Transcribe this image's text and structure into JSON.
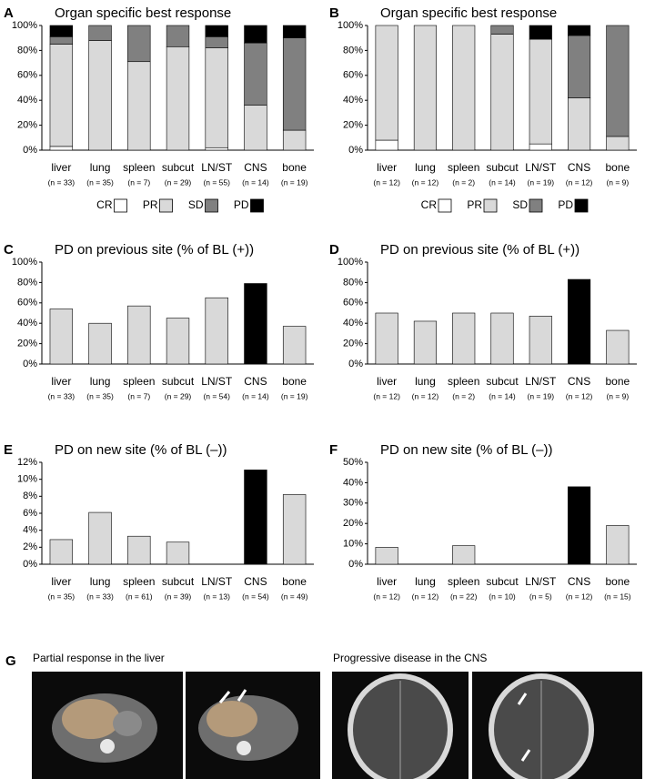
{
  "chart_data": [
    {
      "type": "stacked_bar",
      "panel": "A",
      "title": "Organ specific best response",
      "categories": [
        "liver",
        "lung",
        "spleen",
        "subcut",
        "LN/ST",
        "CNS",
        "bone"
      ],
      "n_labels": [
        "(n = 33)",
        "(n = 35)",
        "(n = 7)",
        "(n = 29)",
        "(n = 55)",
        "(n = 14)",
        "(n = 19)"
      ],
      "series": [
        {
          "name": "CR",
          "color": "#ffffff",
          "values": [
            3,
            0,
            0,
            0,
            2,
            0,
            0
          ]
        },
        {
          "name": "PR",
          "color": "#d9d9d9",
          "values": [
            82,
            88,
            71,
            83,
            80,
            36,
            16
          ]
        },
        {
          "name": "SD",
          "color": "#808080",
          "values": [
            6,
            12,
            29,
            17,
            9,
            50,
            74
          ]
        },
        {
          "name": "PD",
          "color": "#000000",
          "values": [
            9,
            0,
            0,
            0,
            9,
            14,
            10
          ]
        }
      ],
      "ylim": [
        0,
        100
      ],
      "yticks": [
        {
          "value": 0,
          "label": "0%"
        },
        {
          "value": 20,
          "label": "20%"
        },
        {
          "value": 40,
          "label": "40%"
        },
        {
          "value": 60,
          "label": "60%"
        },
        {
          "value": 80,
          "label": "80%"
        },
        {
          "value": 100,
          "label": "100%"
        }
      ]
    },
    {
      "type": "stacked_bar",
      "panel": "B",
      "title": "Organ specific best response",
      "categories": [
        "liver",
        "lung",
        "spleen",
        "subcut",
        "LN/ST",
        "CNS",
        "bone"
      ],
      "n_labels": [
        "(n = 12)",
        "(n = 12)",
        "(n = 2)",
        "(n = 14)",
        "(n = 19)",
        "(n = 12)",
        "(n = 9)"
      ],
      "series": [
        {
          "name": "CR",
          "color": "#ffffff",
          "values": [
            8,
            0,
            0,
            0,
            5,
            0,
            0
          ]
        },
        {
          "name": "PR",
          "color": "#d9d9d9",
          "values": [
            92,
            100,
            100,
            93,
            84,
            42,
            11
          ]
        },
        {
          "name": "SD",
          "color": "#808080",
          "values": [
            0,
            0,
            0,
            7,
            0,
            50,
            89
          ]
        },
        {
          "name": "PD",
          "color": "#000000",
          "values": [
            0,
            0,
            0,
            0,
            11,
            8,
            0
          ]
        }
      ],
      "ylim": [
        0,
        100
      ],
      "yticks": [
        {
          "value": 0,
          "label": "0%"
        },
        {
          "value": 20,
          "label": "20%"
        },
        {
          "value": 40,
          "label": "40%"
        },
        {
          "value": 60,
          "label": "60%"
        },
        {
          "value": 80,
          "label": "80%"
        },
        {
          "value": 100,
          "label": "100%"
        }
      ]
    },
    {
      "type": "bar",
      "panel": "C",
      "title": "PD on previous site (% of BL (+))",
      "categories": [
        "liver",
        "lung",
        "spleen",
        "subcut",
        "LN/ST",
        "CNS",
        "bone"
      ],
      "n_labels": [
        "(n = 33)",
        "(n = 35)",
        "(n = 7)",
        "(n = 29)",
        "(n = 54)",
        "(n = 14)",
        "(n = 19)"
      ],
      "values": [
        54,
        40,
        57,
        45,
        65,
        79,
        37
      ],
      "colors": [
        "#d9d9d9",
        "#d9d9d9",
        "#d9d9d9",
        "#d9d9d9",
        "#d9d9d9",
        "#000000",
        "#d9d9d9"
      ],
      "ylim": [
        0,
        100
      ],
      "yticks": [
        {
          "value": 0,
          "label": "0%"
        },
        {
          "value": 20,
          "label": "20%"
        },
        {
          "value": 40,
          "label": "40%"
        },
        {
          "value": 60,
          "label": "60%"
        },
        {
          "value": 80,
          "label": "80%"
        },
        {
          "value": 100,
          "label": "100%"
        }
      ]
    },
    {
      "type": "bar",
      "panel": "D",
      "title": "PD on previous site (% of BL (+))",
      "categories": [
        "liver",
        "lung",
        "spleen",
        "subcut",
        "LN/ST",
        "CNS",
        "bone"
      ],
      "n_labels": [
        "(n = 12)",
        "(n = 12)",
        "(n = 2)",
        "(n = 14)",
        "(n = 19)",
        "(n = 12)",
        "(n = 9)"
      ],
      "values": [
        50,
        42,
        50,
        50,
        47,
        83,
        33
      ],
      "colors": [
        "#d9d9d9",
        "#d9d9d9",
        "#d9d9d9",
        "#d9d9d9",
        "#d9d9d9",
        "#000000",
        "#d9d9d9"
      ],
      "ylim": [
        0,
        100
      ],
      "yticks": [
        {
          "value": 0,
          "label": "0%"
        },
        {
          "value": 20,
          "label": "20%"
        },
        {
          "value": 40,
          "label": "40%"
        },
        {
          "value": 60,
          "label": "60%"
        },
        {
          "value": 80,
          "label": "80%"
        },
        {
          "value": 100,
          "label": "100%"
        }
      ]
    },
    {
      "type": "bar",
      "panel": "E",
      "title": "PD on new site (% of BL (–))",
      "categories": [
        "liver",
        "lung",
        "spleen",
        "subcut",
        "LN/ST",
        "CNS",
        "bone"
      ],
      "n_labels": [
        "(n = 35)",
        "(n = 33)",
        "(n = 61)",
        "(n = 39)",
        "(n = 13)",
        "(n = 54)",
        "(n = 49)"
      ],
      "values": [
        2.9,
        6.1,
        3.3,
        2.6,
        0,
        11.1,
        8.2
      ],
      "colors": [
        "#d9d9d9",
        "#d9d9d9",
        "#d9d9d9",
        "#d9d9d9",
        "#d9d9d9",
        "#000000",
        "#d9d9d9"
      ],
      "ylim": [
        0,
        12
      ],
      "yticks": [
        {
          "value": 0,
          "label": "0%"
        },
        {
          "value": 2,
          "label": "2%"
        },
        {
          "value": 4,
          "label": "4%"
        },
        {
          "value": 6,
          "label": "6%"
        },
        {
          "value": 8,
          "label": "8%"
        },
        {
          "value": 10,
          "label": "10%"
        },
        {
          "value": 12,
          "label": "12%"
        }
      ]
    },
    {
      "type": "bar",
      "panel": "F",
      "title": "PD on new site (% of BL (–))",
      "categories": [
        "liver",
        "lung",
        "spleen",
        "subcut",
        "LN/ST",
        "CNS",
        "bone"
      ],
      "n_labels": [
        "(n = 12)",
        "(n = 12)",
        "(n = 22)",
        "(n = 10)",
        "(n = 5)",
        "(n = 12)",
        "(n = 15)"
      ],
      "values": [
        8.3,
        0,
        9.1,
        0,
        0,
        38,
        19
      ],
      "colors": [
        "#d9d9d9",
        "#d9d9d9",
        "#d9d9d9",
        "#d9d9d9",
        "#d9d9d9",
        "#000000",
        "#d9d9d9"
      ],
      "ylim": [
        0,
        50
      ],
      "yticks": [
        {
          "value": 0,
          "label": "0%"
        },
        {
          "value": 10,
          "label": "10%"
        },
        {
          "value": 20,
          "label": "20%"
        },
        {
          "value": 30,
          "label": "30%"
        },
        {
          "value": 40,
          "label": "40%"
        },
        {
          "value": 50,
          "label": "50%"
        }
      ]
    }
  ],
  "panel_g": {
    "label": "G",
    "captions": [
      "Partial response in the liver",
      "Progressive disease in the CNS"
    ]
  }
}
